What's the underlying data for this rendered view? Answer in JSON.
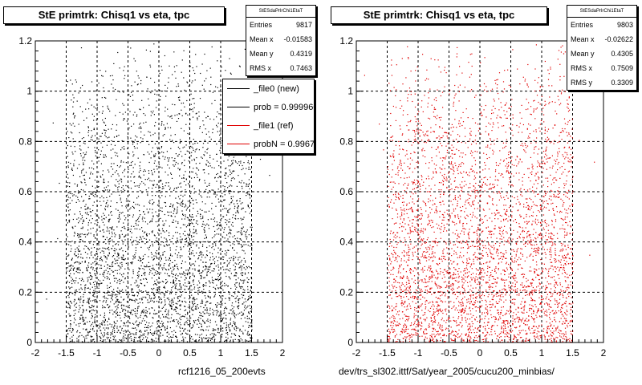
{
  "colors": {
    "new": "#000000",
    "ref": "#e00000",
    "frame": "#000000",
    "background": "#ffffff"
  },
  "legend": {
    "entries": [
      {
        "label": "_file0 (new)",
        "color": "#000000"
      },
      {
        "label": "prob = 0.999960",
        "color": "#000000"
      },
      {
        "label": "_file1 (ref)",
        "color": "#e00000"
      },
      {
        "label": "probN = 0.996740",
        "color": "#e00000"
      }
    ]
  },
  "panels": [
    {
      "title": "StE primtrk: Chisq1 vs eta, tpc",
      "stats": {
        "name": "StESdaPrlrChi1EtaT",
        "rows": [
          {
            "label": "Entries",
            "value": "9817"
          },
          {
            "label": "Mean x",
            "value": "-0.01583"
          },
          {
            "label": "Mean y",
            "value": "0.4319"
          },
          {
            "label": "RMS x",
            "value": "0.7463"
          }
        ]
      },
      "xaxis_title": "rcf1216_05_200evts"
    },
    {
      "title": "StE primtrk: Chisq1 vs eta, tpc",
      "stats": {
        "name": "StESdaPrlrChi1EtaT",
        "rows": [
          {
            "label": "Entries",
            "value": "9803"
          },
          {
            "label": "Mean x",
            "value": "-0.02622"
          },
          {
            "label": "Mean y",
            "value": "0.4305"
          },
          {
            "label": "RMS x",
            "value": "0.7509"
          },
          {
            "label": "RMS y",
            "value": "0.3309"
          }
        ]
      },
      "xaxis_title": "dev/trs_sl302.ittf/Sat/year_2005/cucu200_minbias/"
    }
  ],
  "chart_data": [
    {
      "type": "scatter",
      "title": "StE primtrk: Chisq1 vs eta, tpc",
      "xlabel": "rcf1216_05_200evts",
      "ylabel": "",
      "xlim": [
        -2,
        2
      ],
      "ylim": [
        0,
        1.2
      ],
      "x_ticks": [
        -2,
        -1.5,
        -1,
        -0.5,
        0,
        0.5,
        1,
        1.5,
        2
      ],
      "y_ticks": [
        0,
        0.2,
        0.4,
        0.6,
        0.8,
        1,
        1.2
      ],
      "x_tick_labels": [
        "-2",
        "-1.5",
        "-1",
        "-0.5",
        "0",
        "0.5",
        "1",
        "1.5",
        "2"
      ],
      "y_tick_labels": [
        "0",
        "0.2",
        "0.4",
        "0.6",
        "0.8",
        "1",
        "1.2"
      ],
      "grid": true,
      "series": [
        {
          "color": "#000000",
          "entries": 9817,
          "mean_x": -0.01583,
          "mean_y": 0.4319,
          "rms_x": 0.7463,
          "x_range": [
            -1.5,
            1.5
          ],
          "density": "highest near y=0, decreasing toward y=1.2"
        }
      ]
    },
    {
      "type": "scatter",
      "title": "StE primtrk: Chisq1 vs eta, tpc",
      "xlabel": "dev/trs_sl302.ittf/Sat/year_2005/cucu200_minbias/",
      "ylabel": "",
      "xlim": [
        -2,
        2
      ],
      "ylim": [
        0,
        1.2
      ],
      "x_ticks": [
        -2,
        -1.5,
        -1,
        -0.5,
        0,
        0.5,
        1,
        1.5,
        2
      ],
      "y_ticks": [
        0,
        0.2,
        0.4,
        0.6,
        0.8,
        1,
        1.2
      ],
      "x_tick_labels": [
        "-2",
        "-1.5",
        "-1",
        "-0.5",
        "0",
        "0.5",
        "1",
        "1.5",
        "2"
      ],
      "y_tick_labels": [
        "0",
        "0.2",
        "0.4",
        "0.6",
        "0.8",
        "1",
        "1.2"
      ],
      "grid": true,
      "series": [
        {
          "color": "#e00000",
          "entries": 9803,
          "mean_x": -0.02622,
          "mean_y": 0.4305,
          "rms_x": 0.7509,
          "rms_y": 0.3309,
          "x_range": [
            -1.5,
            1.5
          ],
          "density": "highest near y=0, decreasing toward y=1.2"
        }
      ]
    }
  ]
}
